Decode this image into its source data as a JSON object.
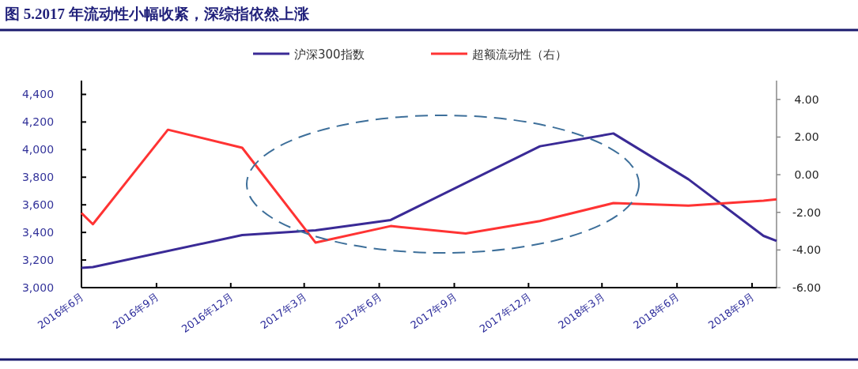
{
  "chart_data": {
    "type": "line",
    "title": "图 5.2017 年流动性小幅收紧，深综指依然上涨",
    "legend": "top",
    "marker": "none",
    "line_style": "solid",
    "xlim": [
      "2016-06-01",
      "2018-10-01"
    ],
    "xticks": [
      {
        "value": "2016-06-01",
        "label": "2016年6月"
      },
      {
        "value": "2016-09-01",
        "label": "2016年9月"
      },
      {
        "value": "2016-12-01",
        "label": "2016年12月"
      },
      {
        "value": "2017-03-01",
        "label": "2017年3月"
      },
      {
        "value": "2017-06-01",
        "label": "2017年6月"
      },
      {
        "value": "2017-09-01",
        "label": "2017年9月"
      },
      {
        "value": "2017-12-01",
        "label": "2017年12月"
      },
      {
        "value": "2018-03-01",
        "label": "2018年3月"
      },
      {
        "value": "2018-06-01",
        "label": "2018年6月"
      },
      {
        "value": "2018-09-01",
        "label": "2018年9月"
      }
    ],
    "ylim": [
      3000,
      4500
    ],
    "yticks": [
      {
        "value": 3000,
        "label": "3,000"
      },
      {
        "value": 3200,
        "label": "3,200"
      },
      {
        "value": 3400,
        "label": "3,400"
      },
      {
        "value": 3600,
        "label": "3,600"
      },
      {
        "value": 3800,
        "label": "3,800"
      },
      {
        "value": 4000,
        "label": "4,000"
      },
      {
        "value": 4200,
        "label": "4,200"
      },
      {
        "value": 4400,
        "label": "4,400"
      }
    ],
    "y2lim": [
      -6,
      5
    ],
    "y2ticks": [
      {
        "value": -6,
        "label": "-6.00"
      },
      {
        "value": -4,
        "label": "-4.00"
      },
      {
        "value": -2,
        "label": "-2.00"
      },
      {
        "value": 0,
        "label": "0.00"
      },
      {
        "value": 2,
        "label": "2.00"
      },
      {
        "value": 4,
        "label": "4.00"
      }
    ],
    "series": [
      {
        "name": "沪深300指数",
        "color": "#3a2a96",
        "x": [
          "2016-06-01",
          "2016-06-15",
          "2016-12-15",
          "2017-03-15",
          "2017-06-15",
          "2017-12-15",
          "2018-03-15",
          "2018-06-15",
          "2018-09-15",
          "2018-10-01"
        ],
        "values": [
          3143,
          3149,
          3381,
          3415,
          3490,
          4024,
          4117,
          3785,
          3375,
          3338
        ]
      },
      {
        "name": "超额流动性（右）",
        "color": "#ff3333",
        "axis": "y2",
        "x": [
          "2016-06-01",
          "2016-06-15",
          "2016-09-15",
          "2016-12-15",
          "2017-03-15",
          "2017-06-15",
          "2017-09-15",
          "2017-12-15",
          "2018-03-15",
          "2018-06-15",
          "2018-09-15",
          "2018-10-01"
        ],
        "values": [
          -2.04,
          -2.63,
          2.39,
          1.43,
          -3.61,
          -2.73,
          -3.12,
          -2.46,
          -1.51,
          -1.64,
          -1.38,
          -1.31
        ]
      }
    ]
  }
}
